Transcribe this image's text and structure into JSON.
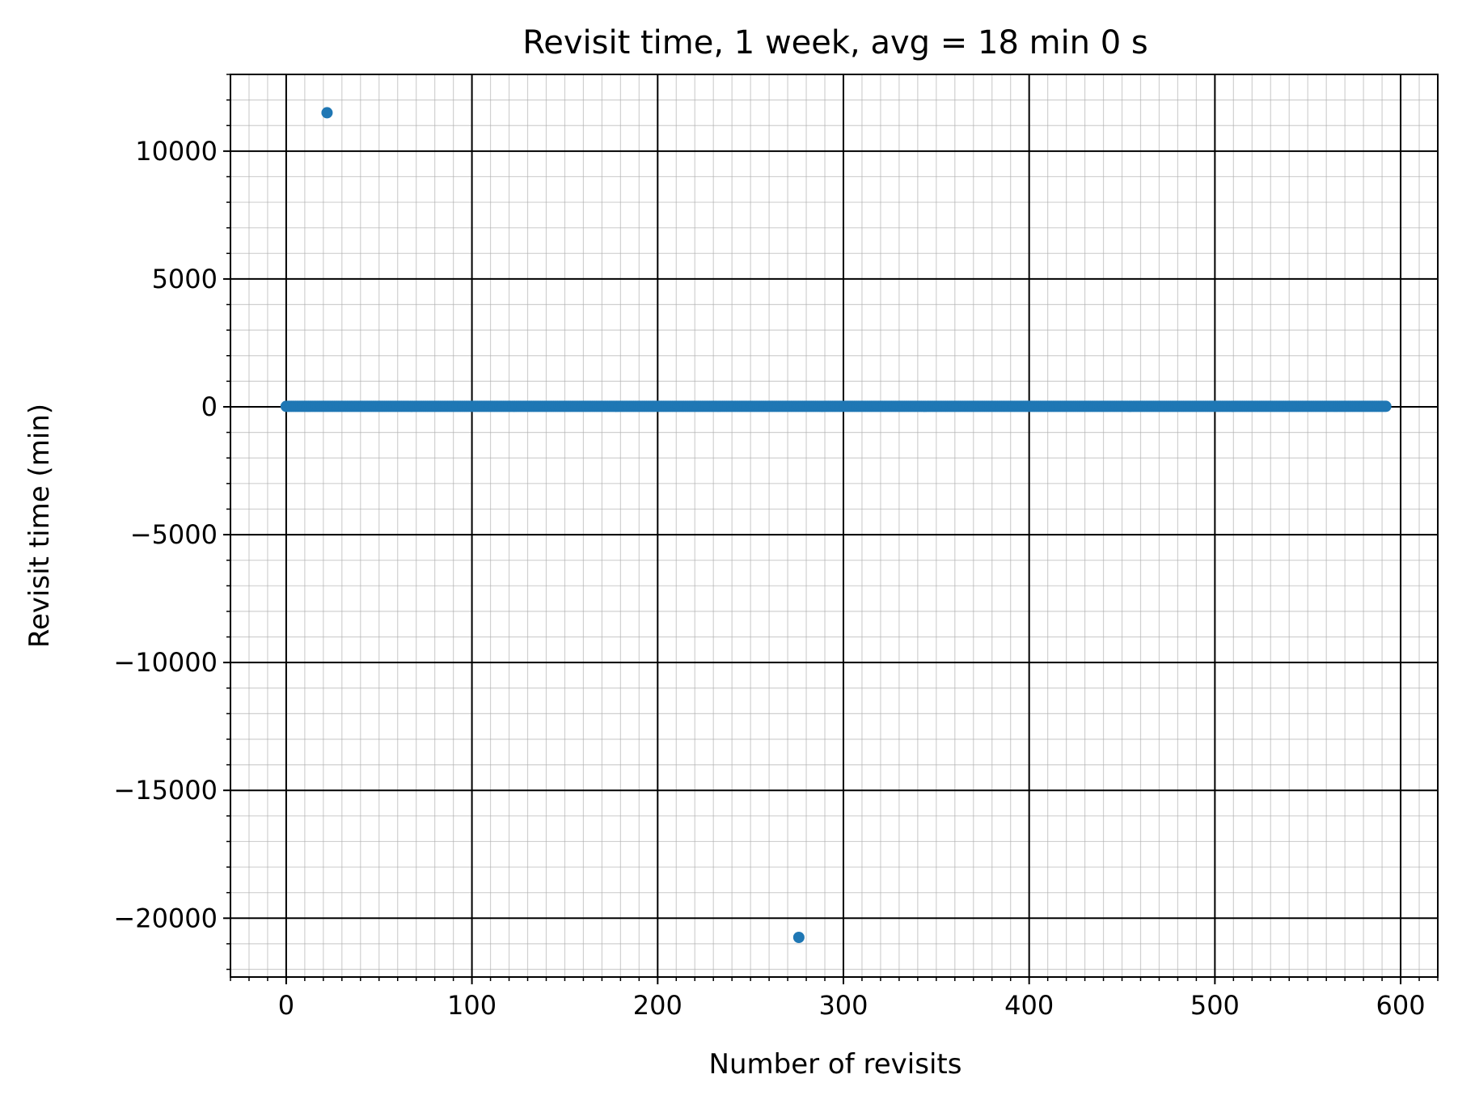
{
  "chart_data": {
    "type": "scatter",
    "title": "Revisit time, 1 week, avg = 18 min 0 s",
    "xlabel": "Number of revisits",
    "ylabel": "Revisit time (min)",
    "xlim": [
      -30,
      620
    ],
    "ylim": [
      -22300,
      13000
    ],
    "x_ticks": [
      0,
      100,
      200,
      300,
      400,
      500,
      600
    ],
    "x_tick_labels": [
      "0",
      "100",
      "200",
      "300",
      "400",
      "500",
      "600"
    ],
    "y_ticks": [
      10000,
      5000,
      0,
      -5000,
      -10000,
      -15000,
      -20000
    ],
    "y_tick_labels": [
      "10000",
      "5000",
      "0",
      "−5000",
      "−10000",
      "−15000",
      "−20000"
    ],
    "x_minor_step": 10,
    "y_minor_step": 1000,
    "grid": {
      "major": true,
      "minor": true
    },
    "marker_color": "#1f77b4",
    "series": [
      {
        "baseline": {
          "x_start": 0,
          "x_end": 592,
          "y": 18
        },
        "outliers": [
          {
            "x": 22,
            "y": 11500
          },
          {
            "x": 276,
            "y": -20750
          }
        ]
      }
    ]
  }
}
